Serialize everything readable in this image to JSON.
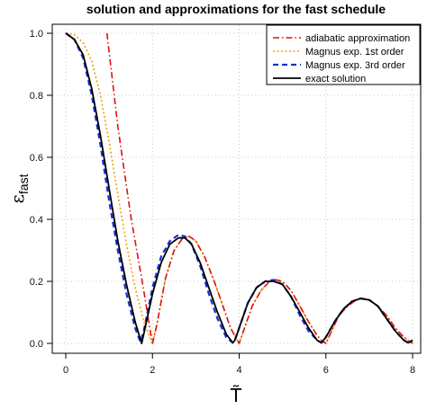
{
  "chart_data": {
    "type": "line",
    "title": "solution and approximations for the fast schedule",
    "xlabel": "T̃",
    "ylabel": "ε",
    "ylabel_sub": "fast",
    "xlim": [
      0,
      8
    ],
    "ylim": [
      0,
      1
    ],
    "x_ticks": [
      "0",
      "2",
      "4",
      "6",
      "8"
    ],
    "y_ticks": [
      "0.0",
      "0.2",
      "0.4",
      "0.6",
      "0.8",
      "1.0"
    ],
    "grid": true,
    "legend_position": "top-right",
    "series": [
      {
        "name": "adiabatic approximation",
        "color": "#dd1111",
        "style": "dash-dot",
        "x": [
          0.95,
          1.2,
          1.5,
          1.8,
          1.95,
          2.0,
          2.1,
          2.3,
          2.5,
          2.7,
          2.85,
          3.0,
          3.2,
          3.4,
          3.6,
          3.8,
          3.9,
          4.0,
          4.1,
          4.3,
          4.5,
          4.7,
          4.85,
          5.0,
          5.2,
          5.4,
          5.6,
          5.8,
          5.9,
          6.0,
          6.1,
          6.3,
          6.5,
          6.7,
          6.85,
          7.0,
          7.2,
          7.4,
          7.6,
          7.8,
          7.9,
          8.0
        ],
        "values": [
          1.0,
          0.7,
          0.41,
          0.17,
          0.04,
          0.0,
          0.06,
          0.21,
          0.3,
          0.34,
          0.345,
          0.33,
          0.28,
          0.21,
          0.13,
          0.05,
          0.025,
          0.0,
          0.04,
          0.12,
          0.17,
          0.2,
          0.205,
          0.2,
          0.17,
          0.12,
          0.07,
          0.025,
          0.01,
          0.0,
          0.03,
          0.09,
          0.12,
          0.14,
          0.145,
          0.14,
          0.12,
          0.09,
          0.05,
          0.02,
          0.01,
          0.0
        ]
      },
      {
        "name": "Magnus exp. 1st order",
        "color": "#f2a000",
        "style": "dotted",
        "x": [
          0.0,
          0.2,
          0.4,
          0.6,
          0.8,
          1.0,
          1.2,
          1.4,
          1.6,
          1.8,
          1.95,
          2.0,
          2.1,
          2.3,
          2.5,
          2.7,
          2.85,
          3.0,
          3.2,
          3.4,
          3.6,
          3.8,
          3.9,
          4.0,
          4.1,
          4.3,
          4.5,
          4.7,
          4.85,
          5.0,
          5.2,
          5.4,
          5.6,
          5.8,
          5.9,
          6.0,
          6.1,
          6.3,
          6.5,
          6.7,
          6.85,
          7.0,
          7.2,
          7.4,
          7.6,
          7.8,
          7.9,
          8.0
        ],
        "values": [
          1.0,
          0.995,
          0.97,
          0.91,
          0.8,
          0.65,
          0.48,
          0.32,
          0.18,
          0.07,
          0.015,
          0.0,
          0.06,
          0.21,
          0.3,
          0.34,
          0.345,
          0.33,
          0.28,
          0.21,
          0.13,
          0.05,
          0.025,
          0.0,
          0.04,
          0.12,
          0.17,
          0.2,
          0.205,
          0.2,
          0.17,
          0.12,
          0.07,
          0.025,
          0.01,
          0.0,
          0.03,
          0.09,
          0.12,
          0.14,
          0.145,
          0.14,
          0.12,
          0.09,
          0.05,
          0.02,
          0.01,
          0.0
        ]
      },
      {
        "name": "Magnus exp. 3rd order",
        "color": "#1530d8",
        "style": "dashed",
        "x": [
          0.0,
          0.2,
          0.4,
          0.6,
          0.8,
          1.0,
          1.2,
          1.4,
          1.6,
          1.72,
          1.8,
          2.0,
          2.2,
          2.4,
          2.6,
          2.75,
          2.9,
          3.1,
          3.3,
          3.5,
          3.7,
          3.85,
          3.9,
          4.0,
          4.2,
          4.4,
          4.6,
          4.8,
          5.0,
          5.2,
          5.4,
          5.6,
          5.8,
          5.9,
          6.0,
          6.2,
          6.4,
          6.6,
          6.8,
          7.0,
          7.2,
          7.4,
          7.6,
          7.8,
          7.9,
          8.0
        ],
        "values": [
          1.0,
          0.98,
          0.92,
          0.8,
          0.64,
          0.46,
          0.3,
          0.16,
          0.05,
          0.005,
          0.04,
          0.18,
          0.28,
          0.33,
          0.35,
          0.345,
          0.32,
          0.25,
          0.16,
          0.08,
          0.02,
          0.002,
          0.01,
          0.05,
          0.13,
          0.18,
          0.2,
          0.205,
          0.19,
          0.15,
          0.09,
          0.04,
          0.01,
          0.002,
          0.02,
          0.07,
          0.11,
          0.135,
          0.145,
          0.14,
          0.12,
          0.08,
          0.04,
          0.01,
          0.002,
          0.01
        ]
      },
      {
        "name": "exact solution",
        "color": "#000000",
        "style": "solid",
        "x": [
          0.0,
          0.2,
          0.4,
          0.6,
          0.8,
          1.0,
          1.2,
          1.4,
          1.6,
          1.75,
          1.8,
          2.0,
          2.2,
          2.4,
          2.6,
          2.75,
          2.9,
          3.1,
          3.3,
          3.5,
          3.7,
          3.85,
          3.9,
          4.0,
          4.2,
          4.4,
          4.6,
          4.8,
          5.0,
          5.2,
          5.4,
          5.6,
          5.8,
          5.9,
          6.0,
          6.2,
          6.4,
          6.6,
          6.8,
          7.0,
          7.2,
          7.4,
          7.6,
          7.8,
          7.9,
          8.0
        ],
        "values": [
          1.0,
          0.98,
          0.93,
          0.82,
          0.67,
          0.5,
          0.33,
          0.19,
          0.07,
          0.0,
          0.03,
          0.16,
          0.26,
          0.32,
          0.34,
          0.34,
          0.32,
          0.26,
          0.18,
          0.1,
          0.03,
          0.002,
          0.01,
          0.05,
          0.13,
          0.18,
          0.2,
          0.2,
          0.19,
          0.15,
          0.1,
          0.05,
          0.01,
          0.002,
          0.02,
          0.07,
          0.11,
          0.135,
          0.145,
          0.14,
          0.12,
          0.08,
          0.04,
          0.01,
          0.002,
          0.01
        ]
      }
    ]
  }
}
